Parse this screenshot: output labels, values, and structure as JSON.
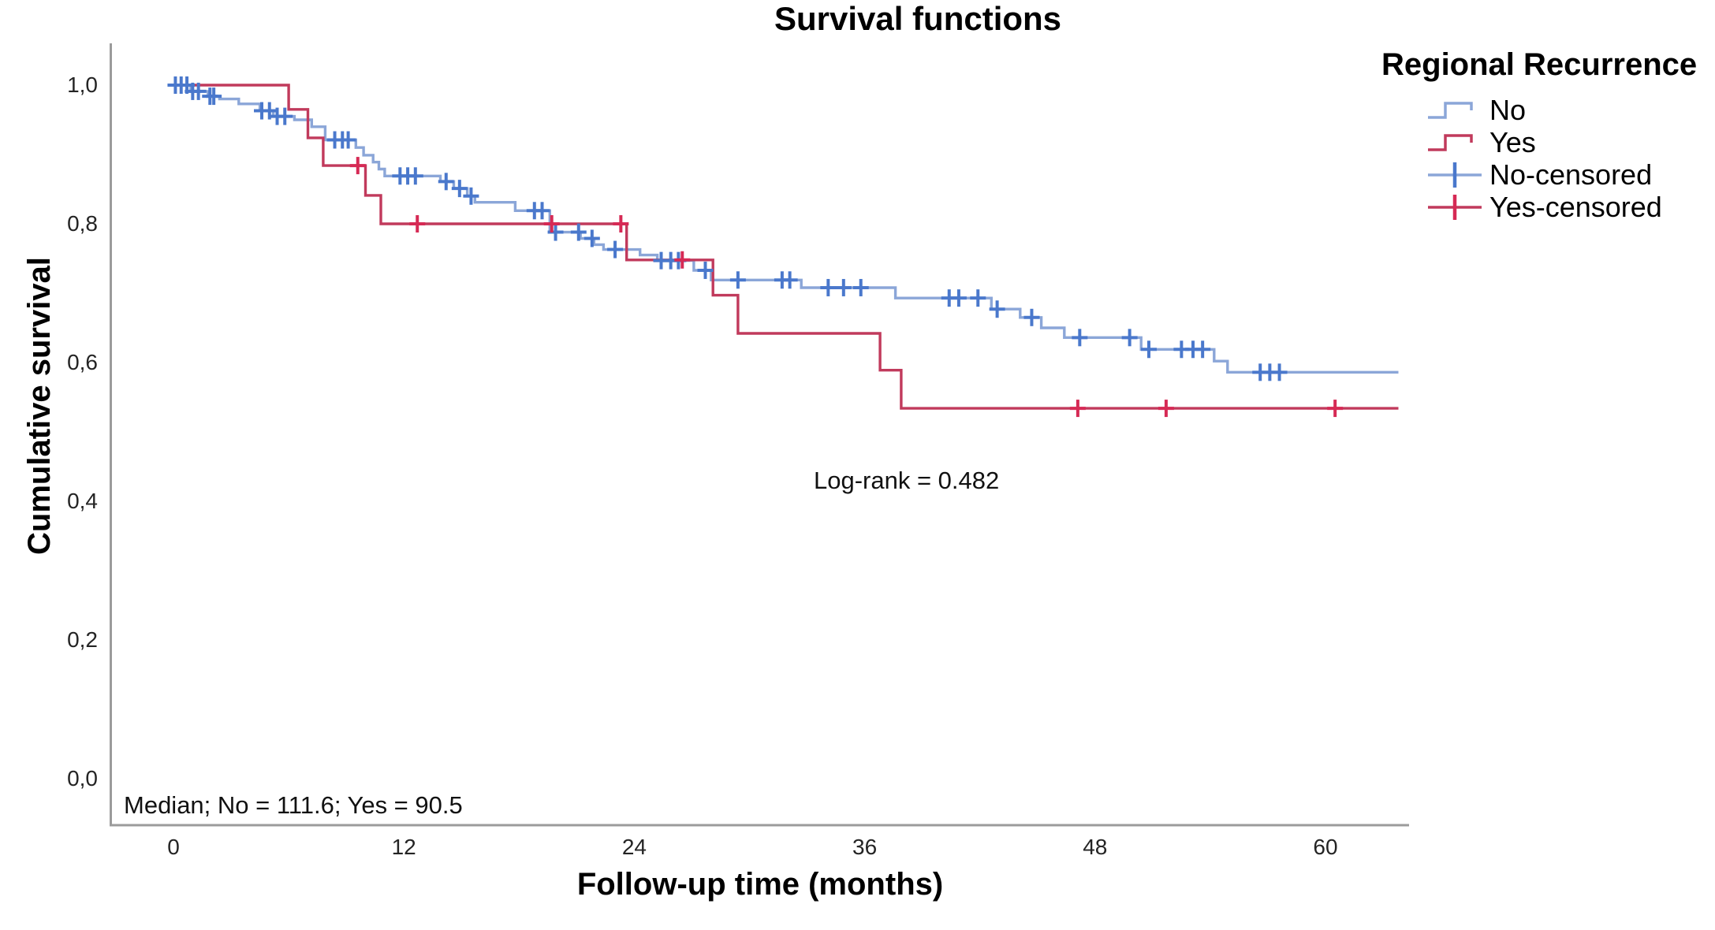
{
  "chart_data": {
    "type": "line",
    "subtype": "kaplan-meier-step-survival",
    "title": "Survival functions",
    "xlabel": "Follow-up time (months)",
    "ylabel": "Cumulative survival",
    "grid": false,
    "legend_position": "top-right",
    "x_ticks": [
      0,
      12,
      24,
      36,
      48,
      60
    ],
    "y_ticks": [
      {
        "label": "0,0",
        "value": 0.0
      },
      {
        "label": "0,2",
        "value": 0.2
      },
      {
        "label": "0,4",
        "value": 0.4
      },
      {
        "label": "0,6",
        "value": 0.6
      },
      {
        "label": "0,8",
        "value": 0.8
      },
      {
        "label": "1,0",
        "value": 1.0
      }
    ],
    "xlim": [
      -3.3,
      64.4
    ],
    "ylim": [
      -0.07,
      1.06
    ],
    "annotations": [
      {
        "id": "log_rank",
        "text": "Log-rank = 0.482"
      },
      {
        "id": "median",
        "text": "Median; No = 111.6; Yes = 90.5"
      }
    ],
    "legend": {
      "title": "Regional Recurrence",
      "items": [
        {
          "label": "No",
          "symbol": "step",
          "line_color": "#8ba6d8",
          "mark_color": "#8ba6d8"
        },
        {
          "label": "Yes",
          "symbol": "step",
          "line_color": "#c13a5c",
          "mark_color": "#c13a5c"
        },
        {
          "label": "No-censored",
          "symbol": "censor",
          "line_color": "#8ba6d8",
          "mark_color": "#4a78cc"
        },
        {
          "label": "Yes-censored",
          "symbol": "censor",
          "line_color": "#c13a5c",
          "mark_color": "#d62a55"
        }
      ]
    },
    "colors": {
      "no_line": "#8ba6d8",
      "no_censor": "#4a78cc",
      "yes_line": "#c13a5c",
      "yes_censor": "#d62a55",
      "axis": "#9b9b9b"
    },
    "series": [
      {
        "name": "No",
        "color": "#8ba6d8",
        "censor_color": "#4a78cc",
        "end_month": 63.8,
        "steps": [
          [
            0,
            1.0
          ],
          [
            0.9,
            0.991
          ],
          [
            1.8,
            0.984
          ],
          [
            2.4,
            0.98
          ],
          [
            3.4,
            0.973
          ],
          [
            4.5,
            0.963
          ],
          [
            5.2,
            0.955
          ],
          [
            6.3,
            0.95
          ],
          [
            7.2,
            0.94
          ],
          [
            7.9,
            0.921
          ],
          [
            9.5,
            0.91
          ],
          [
            9.9,
            0.899
          ],
          [
            10.4,
            0.889
          ],
          [
            10.7,
            0.879
          ],
          [
            11.0,
            0.869
          ],
          [
            13.9,
            0.861
          ],
          [
            14.6,
            0.851
          ],
          [
            15.3,
            0.84
          ],
          [
            15.7,
            0.831
          ],
          [
            17.8,
            0.819
          ],
          [
            19.6,
            0.788
          ],
          [
            21.2,
            0.779
          ],
          [
            21.9,
            0.77
          ],
          [
            22.4,
            0.763
          ],
          [
            24.3,
            0.755
          ],
          [
            25.2,
            0.747
          ],
          [
            27.1,
            0.733
          ],
          [
            28.0,
            0.719
          ],
          [
            32.7,
            0.708
          ],
          [
            37.6,
            0.693
          ],
          [
            42.6,
            0.677
          ],
          [
            44.1,
            0.665
          ],
          [
            45.2,
            0.65
          ],
          [
            46.4,
            0.636
          ],
          [
            50.4,
            0.619
          ],
          [
            54.2,
            0.602
          ],
          [
            54.9,
            0.586
          ]
        ],
        "censored": [
          [
            0.1,
            1.0
          ],
          [
            0.4,
            1.0
          ],
          [
            0.7,
            1.0
          ],
          [
            1.0,
            0.991
          ],
          [
            1.3,
            0.991
          ],
          [
            1.9,
            0.984
          ],
          [
            2.1,
            0.984
          ],
          [
            4.6,
            0.963
          ],
          [
            5.0,
            0.963
          ],
          [
            5.4,
            0.955
          ],
          [
            5.8,
            0.955
          ],
          [
            8.4,
            0.921
          ],
          [
            8.8,
            0.921
          ],
          [
            9.1,
            0.921
          ],
          [
            11.8,
            0.869
          ],
          [
            12.2,
            0.869
          ],
          [
            12.6,
            0.869
          ],
          [
            14.2,
            0.861
          ],
          [
            14.9,
            0.851
          ],
          [
            15.5,
            0.84
          ],
          [
            18.8,
            0.819
          ],
          [
            19.2,
            0.819
          ],
          [
            19.9,
            0.788
          ],
          [
            21.1,
            0.788
          ],
          [
            21.8,
            0.779
          ],
          [
            23.0,
            0.763
          ],
          [
            25.4,
            0.747
          ],
          [
            25.9,
            0.747
          ],
          [
            26.3,
            0.747
          ],
          [
            27.7,
            0.733
          ],
          [
            29.4,
            0.719
          ],
          [
            31.7,
            0.719
          ],
          [
            32.1,
            0.719
          ],
          [
            34.1,
            0.708
          ],
          [
            34.9,
            0.708
          ],
          [
            35.8,
            0.708
          ],
          [
            40.4,
            0.693
          ],
          [
            40.9,
            0.693
          ],
          [
            41.9,
            0.693
          ],
          [
            42.9,
            0.677
          ],
          [
            44.7,
            0.665
          ],
          [
            47.2,
            0.636
          ],
          [
            49.8,
            0.636
          ],
          [
            50.8,
            0.619
          ],
          [
            52.5,
            0.619
          ],
          [
            53.1,
            0.619
          ],
          [
            53.6,
            0.619
          ],
          [
            56.6,
            0.586
          ],
          [
            57.1,
            0.586
          ],
          [
            57.6,
            0.586
          ]
        ]
      },
      {
        "name": "Yes",
        "color": "#c13a5c",
        "censor_color": "#d62a55",
        "end_month": 63.8,
        "steps": [
          [
            0,
            1.0
          ],
          [
            6.0,
            0.965
          ],
          [
            7.0,
            0.924
          ],
          [
            7.8,
            0.884
          ],
          [
            10.0,
            0.841
          ],
          [
            10.8,
            0.8
          ],
          [
            23.6,
            0.748
          ],
          [
            28.1,
            0.697
          ],
          [
            29.4,
            0.642
          ],
          [
            36.8,
            0.589
          ],
          [
            37.9,
            0.534
          ]
        ],
        "censored": [
          [
            9.6,
            0.884
          ],
          [
            12.7,
            0.8
          ],
          [
            19.7,
            0.8
          ],
          [
            23.3,
            0.8
          ],
          [
            26.5,
            0.748
          ],
          [
            47.1,
            0.534
          ],
          [
            51.7,
            0.534
          ],
          [
            60.5,
            0.534
          ]
        ]
      }
    ]
  }
}
